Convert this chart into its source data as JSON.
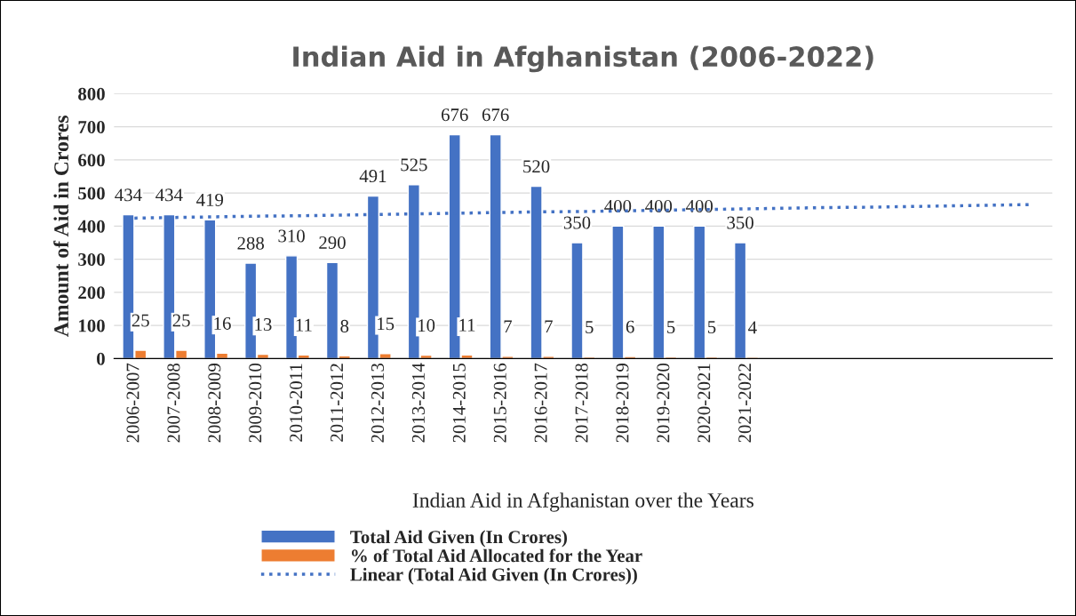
{
  "chart_data": {
    "type": "bar",
    "title": "Indian Aid in Afghanistan (2006-2022)",
    "xlabel": "Indian Aid in Afghanistan over the Years",
    "ylabel": "Amount of Aid in Crores",
    "categories": [
      "2006-2007",
      "2007-2008",
      "2008-2009",
      "2009-2010",
      "2010-2011",
      "2011-2012",
      "2012-2013",
      "2013-2014",
      "2014-2015",
      "2015-2016",
      "2016-2017",
      "2017-2018",
      "2018-2019",
      "2019-2020",
      "2020-2021",
      "2021-2022",
      null,
      null,
      null,
      null,
      null,
      null,
      null
    ],
    "series": [
      {
        "name": "Total Aid Given (In Crores)",
        "color": "#4472c4",
        "values": [
          434,
          434,
          419,
          288,
          310,
          290,
          491,
          525,
          676,
          676,
          520,
          350,
          400,
          400,
          400,
          350,
          null,
          null,
          null,
          null,
          null,
          null,
          null
        ],
        "value_labels": [
          "434",
          "434",
          "419",
          "288",
          "310",
          "290",
          "491",
          "525",
          "676",
          "676",
          "520",
          "350",
          "400",
          "400",
          "400",
          "350",
          null,
          null,
          null,
          null,
          null,
          null,
          null
        ]
      },
      {
        "name": "% of Total Aid Allocated for the Year",
        "color": "#ed7d31",
        "values": [
          25,
          25,
          16,
          13,
          11,
          8,
          15,
          10,
          11,
          7,
          7,
          5,
          6,
          5,
          5,
          4,
          null,
          null,
          null,
          null,
          null,
          null,
          null
        ],
        "value_labels": [
          "25",
          "25",
          "16",
          "13",
          "11",
          "8",
          "15",
          "10",
          "11",
          "7",
          "7",
          "5",
          "6",
          "5",
          "5",
          "4",
          null,
          null,
          null,
          null,
          null,
          null,
          null
        ]
      },
      {
        "name": "Linear (Total Aid Given (In Crores))",
        "type": "line",
        "line_style": "dotted",
        "color": "#4472c4",
        "values": [
          424,
          426,
          428,
          430,
          431,
          433,
          435,
          437,
          439,
          441,
          443,
          444,
          446,
          448,
          450,
          452,
          454,
          456,
          457,
          459,
          461,
          463,
          465
        ]
      }
    ],
    "ylim": [
      0,
      800
    ],
    "yticks": [
      0,
      100,
      200,
      300,
      400,
      500,
      600,
      700,
      800
    ],
    "grid": "y",
    "legend": "bottom"
  }
}
